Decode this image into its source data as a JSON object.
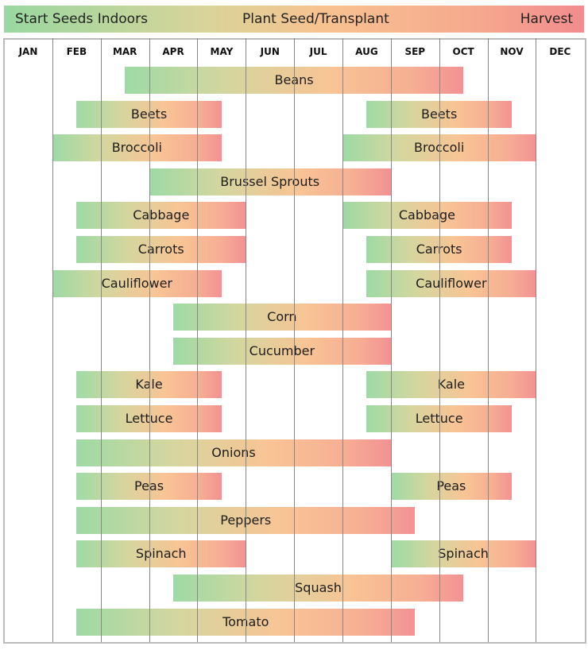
{
  "legend": {
    "start": "Start Seeds Indoors",
    "plant": "Plant Seed/Transplant",
    "harvest": "Harvest"
  },
  "colors": {
    "start": "#98d8a0",
    "plant": "#f8c290",
    "harvest": "#f28c8e"
  },
  "chart_data": {
    "type": "gantt",
    "categories": [
      "JAN",
      "FEB",
      "MAR",
      "APR",
      "MAY",
      "JUN",
      "JUL",
      "AUG",
      "SEP",
      "OCT",
      "NOV",
      "DEC"
    ],
    "note_units": "month index, 0 = start of JAN",
    "rows": [
      {
        "name": "Beans",
        "bars": [
          [
            2.5,
            9.5
          ]
        ]
      },
      {
        "name": "Beets",
        "bars": [
          [
            1.5,
            4.5
          ],
          [
            7.5,
            10.5
          ]
        ]
      },
      {
        "name": "Broccoli",
        "bars": [
          [
            1.0,
            4.5
          ],
          [
            7.0,
            11.0
          ]
        ]
      },
      {
        "name": "Brussel Sprouts",
        "bars": [
          [
            3.0,
            8.0
          ]
        ]
      },
      {
        "name": "Cabbage",
        "bars": [
          [
            1.5,
            5.0
          ],
          [
            7.0,
            10.5
          ]
        ]
      },
      {
        "name": "Carrots",
        "bars": [
          [
            1.5,
            5.0
          ],
          [
            7.5,
            10.5
          ]
        ]
      },
      {
        "name": "Cauliflower",
        "bars": [
          [
            1.0,
            4.5
          ],
          [
            7.5,
            11.0
          ]
        ]
      },
      {
        "name": "Corn",
        "bars": [
          [
            3.5,
            8.0
          ]
        ]
      },
      {
        "name": "Cucumber",
        "bars": [
          [
            3.5,
            8.0
          ]
        ]
      },
      {
        "name": "Kale",
        "bars": [
          [
            1.5,
            4.5
          ],
          [
            7.5,
            11.0
          ]
        ]
      },
      {
        "name": "Lettuce",
        "bars": [
          [
            1.5,
            4.5
          ],
          [
            7.5,
            10.5
          ]
        ]
      },
      {
        "name": "Onions",
        "bars": [
          [
            1.5,
            8.0
          ]
        ]
      },
      {
        "name": "Peas",
        "bars": [
          [
            1.5,
            4.5
          ],
          [
            8.0,
            10.5
          ]
        ]
      },
      {
        "name": "Peppers",
        "bars": [
          [
            1.5,
            8.5
          ]
        ]
      },
      {
        "name": "Spinach",
        "bars": [
          [
            1.5,
            5.0
          ],
          [
            8.0,
            11.0
          ]
        ]
      },
      {
        "name": "Squash",
        "bars": [
          [
            3.5,
            9.5
          ]
        ]
      },
      {
        "name": "Tomato",
        "bars": [
          [
            1.5,
            8.5
          ]
        ]
      }
    ]
  }
}
